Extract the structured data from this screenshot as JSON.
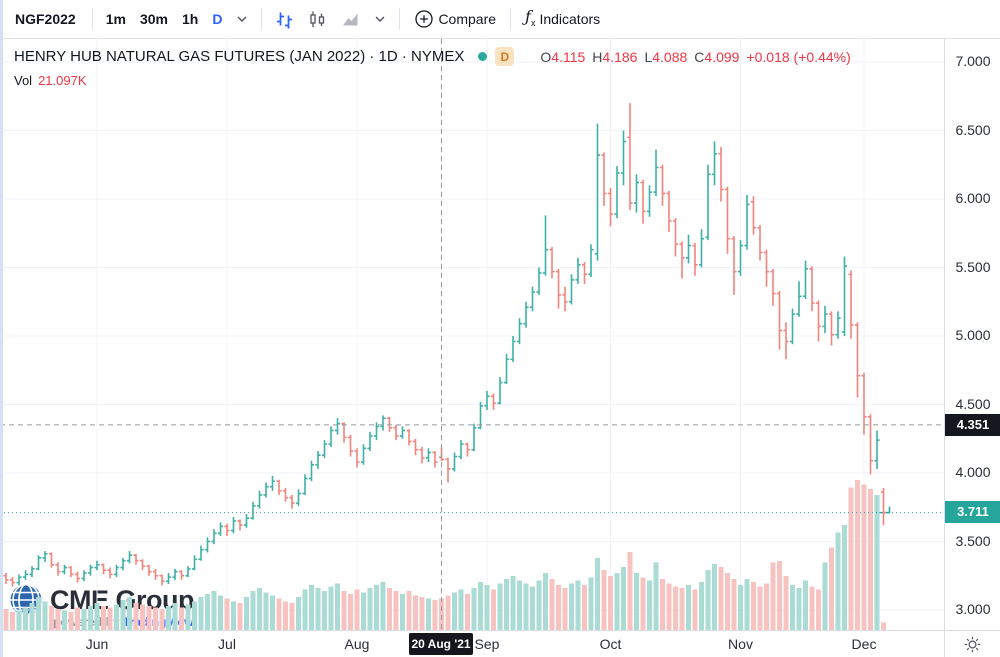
{
  "toolbar": {
    "symbol": "NGF2022",
    "intervals": [
      {
        "label": "1m",
        "active": false
      },
      {
        "label": "30m",
        "active": false
      },
      {
        "label": "1h",
        "active": false
      },
      {
        "label": "D",
        "active": true
      }
    ],
    "style_icons": [
      "bars-chart-icon",
      "candles-chart-icon",
      "area-chart-icon"
    ],
    "compare_label": "Compare",
    "indicators_label": "Indicators"
  },
  "legend": {
    "title": "HENRY HUB NATURAL GAS FUTURES (JAN 2022) · 1D · NYMEX",
    "interval_badge": "D",
    "ohlc": {
      "o_label": "O",
      "o": "4.115",
      "h_label": "H",
      "h": "4.186",
      "l_label": "L",
      "l": "4.088",
      "c_label": "C",
      "c": "4.099",
      "change": "+0.018 (+0.44%)"
    },
    "vol_label": "Vol",
    "vol_value": "21.097K"
  },
  "watermark": {
    "brand_cme": "CME",
    "brand_group": "Group",
    "powered_by": "powered by",
    "powered_brand": "TradingView"
  },
  "price_axis": {
    "crosshair_label": "4.351",
    "last_price_label": "3.711"
  },
  "time_axis": {
    "crosshair_label": "20 Aug '21"
  },
  "colors": {
    "up": "#3eb0a5",
    "down": "#f3837d",
    "vol_up": "#aadbd5",
    "vol_down": "#f7c3c0",
    "accent_blue": "#2962ff",
    "value_red": "#f23645",
    "grid": "#f0f3fa",
    "crosshair": "#9598a1",
    "last_price_line": "#26a69a"
  },
  "chart_data": {
    "type": "ohlc_bars",
    "title": "HENRY HUB NATURAL GAS FUTURES (JAN 2022)",
    "interval": "1D",
    "exchange": "NYMEX",
    "ylim": [
      2.85,
      7.15
    ],
    "y_ticks": [
      3.0,
      3.5,
      4.0,
      4.5,
      5.0,
      5.5,
      6.0,
      6.5,
      7.0
    ],
    "grid": true,
    "months": [
      {
        "label": "Jun",
        "bar_index": 14
      },
      {
        "label": "Jul",
        "bar_index": 34
      },
      {
        "label": "Aug",
        "bar_index": 54
      },
      {
        "label": "Sep",
        "bar_index": 74
      },
      {
        "label": "Oct",
        "bar_index": 93
      },
      {
        "label": "Nov",
        "bar_index": 113
      },
      {
        "label": "Dec",
        "bar_index": 132
      }
    ],
    "crosshair": {
      "bar_index": 67,
      "price": 4.351,
      "time_label": "20 Aug '21"
    },
    "last_price": 3.711,
    "bars_format": [
      "open",
      "high",
      "low",
      "close",
      "volume_k"
    ],
    "bars": [
      [
        3.25,
        3.27,
        3.19,
        3.22,
        14
      ],
      [
        3.22,
        3.24,
        3.17,
        3.2,
        12
      ],
      [
        3.2,
        3.26,
        3.18,
        3.24,
        13
      ],
      [
        3.24,
        3.29,
        3.22,
        3.26,
        15
      ],
      [
        3.26,
        3.32,
        3.24,
        3.3,
        18
      ],
      [
        3.3,
        3.4,
        3.29,
        3.38,
        22
      ],
      [
        3.38,
        3.43,
        3.35,
        3.41,
        19
      ],
      [
        3.41,
        3.42,
        3.31,
        3.33,
        16
      ],
      [
        3.33,
        3.35,
        3.25,
        3.28,
        14
      ],
      [
        3.28,
        3.33,
        3.26,
        3.31,
        13
      ],
      [
        3.31,
        3.32,
        3.24,
        3.26,
        12
      ],
      [
        3.26,
        3.28,
        3.2,
        3.23,
        15
      ],
      [
        3.23,
        3.29,
        3.21,
        3.27,
        14
      ],
      [
        3.27,
        3.33,
        3.25,
        3.31,
        16
      ],
      [
        3.31,
        3.36,
        3.29,
        3.33,
        18
      ],
      [
        3.33,
        3.34,
        3.26,
        3.29,
        16
      ],
      [
        3.29,
        3.31,
        3.23,
        3.26,
        15
      ],
      [
        3.26,
        3.33,
        3.24,
        3.31,
        17
      ],
      [
        3.31,
        3.38,
        3.29,
        3.36,
        20
      ],
      [
        3.36,
        3.43,
        3.34,
        3.4,
        22
      ],
      [
        3.4,
        3.41,
        3.33,
        3.36,
        18
      ],
      [
        3.36,
        3.37,
        3.29,
        3.32,
        17
      ],
      [
        3.32,
        3.33,
        3.25,
        3.28,
        16
      ],
      [
        3.28,
        3.3,
        3.22,
        3.25,
        15
      ],
      [
        3.25,
        3.26,
        3.18,
        3.21,
        14
      ],
      [
        3.21,
        3.27,
        3.19,
        3.24,
        16
      ],
      [
        3.24,
        3.3,
        3.22,
        3.28,
        18
      ],
      [
        3.28,
        3.29,
        3.22,
        3.25,
        15
      ],
      [
        3.25,
        3.32,
        3.24,
        3.3,
        17
      ],
      [
        3.3,
        3.4,
        3.29,
        3.37,
        19
      ],
      [
        3.37,
        3.47,
        3.36,
        3.44,
        22
      ],
      [
        3.44,
        3.53,
        3.42,
        3.5,
        24
      ],
      [
        3.5,
        3.59,
        3.48,
        3.56,
        26
      ],
      [
        3.56,
        3.64,
        3.54,
        3.61,
        23
      ],
      [
        3.61,
        3.63,
        3.54,
        3.58,
        21
      ],
      [
        3.58,
        3.68,
        3.56,
        3.65,
        19
      ],
      [
        3.65,
        3.66,
        3.58,
        3.62,
        18
      ],
      [
        3.62,
        3.7,
        3.6,
        3.67,
        22
      ],
      [
        3.67,
        3.79,
        3.66,
        3.76,
        26
      ],
      [
        3.76,
        3.87,
        3.74,
        3.84,
        28
      ],
      [
        3.84,
        3.93,
        3.82,
        3.9,
        25
      ],
      [
        3.9,
        3.98,
        3.87,
        3.94,
        23
      ],
      [
        3.94,
        3.95,
        3.84,
        3.87,
        21
      ],
      [
        3.87,
        3.89,
        3.79,
        3.82,
        19
      ],
      [
        3.82,
        3.84,
        3.74,
        3.78,
        18
      ],
      [
        3.78,
        3.88,
        3.76,
        3.85,
        22
      ],
      [
        3.85,
        3.99,
        3.84,
        3.96,
        27
      ],
      [
        3.96,
        4.09,
        3.94,
        4.06,
        30
      ],
      [
        4.06,
        4.16,
        4.03,
        4.13,
        28
      ],
      [
        4.13,
        4.24,
        4.11,
        4.21,
        26
      ],
      [
        4.21,
        4.34,
        4.19,
        4.31,
        29
      ],
      [
        4.31,
        4.4,
        4.28,
        4.36,
        31
      ],
      [
        4.36,
        4.37,
        4.22,
        4.26,
        26
      ],
      [
        4.26,
        4.28,
        4.12,
        4.16,
        24
      ],
      [
        4.16,
        4.18,
        4.04,
        4.08,
        27
      ],
      [
        4.08,
        4.21,
        4.06,
        4.18,
        25
      ],
      [
        4.18,
        4.3,
        4.16,
        4.27,
        28
      ],
      [
        4.27,
        4.37,
        4.24,
        4.34,
        30
      ],
      [
        4.34,
        4.42,
        4.31,
        4.4,
        32
      ],
      [
        4.4,
        4.41,
        4.3,
        4.33,
        28
      ],
      [
        4.33,
        4.35,
        4.24,
        4.27,
        26
      ],
      [
        4.27,
        4.34,
        4.25,
        4.31,
        24
      ],
      [
        4.31,
        4.32,
        4.2,
        4.23,
        26
      ],
      [
        4.23,
        4.25,
        4.13,
        4.17,
        23
      ],
      [
        4.17,
        4.19,
        4.07,
        4.11,
        22
      ],
      [
        4.11,
        4.18,
        4.08,
        4.15,
        21
      ],
      [
        4.15,
        4.16,
        4.04,
        4.08,
        20
      ],
      [
        4.115,
        4.186,
        4.088,
        4.099,
        21.097
      ],
      [
        4.1,
        4.11,
        3.93,
        4.03,
        23
      ],
      [
        4.03,
        4.15,
        4.01,
        4.12,
        25
      ],
      [
        4.12,
        4.24,
        4.1,
        4.21,
        27
      ],
      [
        4.21,
        4.22,
        4.12,
        4.17,
        24
      ],
      [
        4.17,
        4.36,
        4.16,
        4.33,
        28
      ],
      [
        4.33,
        4.52,
        4.32,
        4.49,
        32
      ],
      [
        4.49,
        4.6,
        4.46,
        4.56,
        30
      ],
      [
        4.56,
        4.58,
        4.46,
        4.51,
        27
      ],
      [
        4.51,
        4.7,
        4.5,
        4.66,
        31
      ],
      [
        4.66,
        4.87,
        4.65,
        4.83,
        34
      ],
      [
        4.83,
        5.0,
        4.81,
        4.96,
        36
      ],
      [
        4.96,
        5.13,
        4.94,
        5.09,
        33
      ],
      [
        5.09,
        5.25,
        5.06,
        5.21,
        31
      ],
      [
        5.21,
        5.36,
        5.18,
        5.32,
        29
      ],
      [
        5.32,
        5.5,
        5.3,
        5.46,
        33
      ],
      [
        5.46,
        5.88,
        5.44,
        5.63,
        38
      ],
      [
        5.63,
        5.65,
        5.42,
        5.47,
        34
      ],
      [
        5.47,
        5.49,
        5.2,
        5.3,
        30
      ],
      [
        5.3,
        5.36,
        5.18,
        5.25,
        28
      ],
      [
        5.25,
        5.45,
        5.23,
        5.41,
        31
      ],
      [
        5.41,
        5.57,
        5.38,
        5.52,
        33
      ],
      [
        5.52,
        5.54,
        5.38,
        5.45,
        30
      ],
      [
        5.45,
        5.67,
        5.43,
        5.63,
        35
      ],
      [
        5.6,
        6.55,
        5.55,
        6.32,
        48
      ],
      [
        6.32,
        6.34,
        5.95,
        6.04,
        40
      ],
      [
        6.04,
        6.08,
        5.8,
        5.89,
        36
      ],
      [
        5.89,
        6.24,
        5.86,
        6.19,
        38
      ],
      [
        6.19,
        6.5,
        6.1,
        6.42,
        42
      ],
      [
        6.45,
        6.7,
        5.92,
        5.97,
        52
      ],
      [
        5.97,
        6.18,
        5.9,
        6.12,
        38
      ],
      [
        6.12,
        6.14,
        5.82,
        5.91,
        35
      ],
      [
        5.91,
        6.1,
        5.87,
        6.05,
        33
      ],
      [
        6.05,
        6.36,
        6.02,
        6.23,
        45
      ],
      [
        6.23,
        6.25,
        5.95,
        6.04,
        34
      ],
      [
        6.04,
        6.06,
        5.76,
        5.84,
        31
      ],
      [
        5.84,
        5.86,
        5.58,
        5.67,
        29
      ],
      [
        5.67,
        5.69,
        5.42,
        5.57,
        28
      ],
      [
        5.57,
        5.74,
        5.53,
        5.66,
        30
      ],
      [
        5.66,
        5.68,
        5.44,
        5.52,
        27
      ],
      [
        5.52,
        5.78,
        5.5,
        5.71,
        32
      ],
      [
        5.72,
        6.25,
        5.7,
        6.18,
        40
      ],
      [
        6.18,
        6.42,
        6.1,
        6.33,
        44
      ],
      [
        6.33,
        6.38,
        5.98,
        6.07,
        42
      ],
      [
        6.07,
        6.09,
        5.6,
        5.71,
        38
      ],
      [
        5.71,
        5.73,
        5.3,
        5.47,
        34
      ],
      [
        5.47,
        5.7,
        5.44,
        5.66,
        30
      ],
      [
        5.66,
        6.03,
        5.63,
        5.96,
        34
      ],
      [
        5.98,
        6.02,
        5.74,
        5.79,
        32
      ],
      [
        5.79,
        5.81,
        5.55,
        5.61,
        29
      ],
      [
        5.61,
        5.63,
        5.36,
        5.47,
        31
      ],
      [
        5.47,
        5.49,
        5.22,
        5.31,
        45
      ],
      [
        5.31,
        5.33,
        4.9,
        5.04,
        46
      ],
      [
        5.04,
        5.1,
        4.83,
        4.96,
        36
      ],
      [
        4.96,
        5.2,
        4.94,
        5.16,
        30
      ],
      [
        5.16,
        5.4,
        5.14,
        5.29,
        28
      ],
      [
        5.29,
        5.55,
        5.27,
        5.49,
        33
      ],
      [
        5.49,
        5.51,
        5.18,
        5.24,
        29
      ],
      [
        5.24,
        5.26,
        4.96,
        5.07,
        27
      ],
      [
        5.07,
        5.22,
        5.02,
        5.16,
        45
      ],
      [
        5.16,
        5.18,
        4.93,
        5.01,
        55
      ],
      [
        5.01,
        5.18,
        4.98,
        5.13,
        65
      ],
      [
        5.03,
        5.58,
        5.0,
        5.51,
        70
      ],
      [
        5.45,
        5.48,
        4.98,
        5.08,
        95
      ],
      [
        5.08,
        5.1,
        4.55,
        4.71,
        100
      ],
      [
        4.71,
        4.73,
        4.28,
        4.41,
        97
      ],
      [
        4.41,
        4.43,
        3.99,
        4.09,
        94
      ],
      [
        4.09,
        4.31,
        4.03,
        4.24,
        90
      ],
      [
        3.86,
        3.89,
        3.62,
        3.711,
        5
      ]
    ]
  }
}
